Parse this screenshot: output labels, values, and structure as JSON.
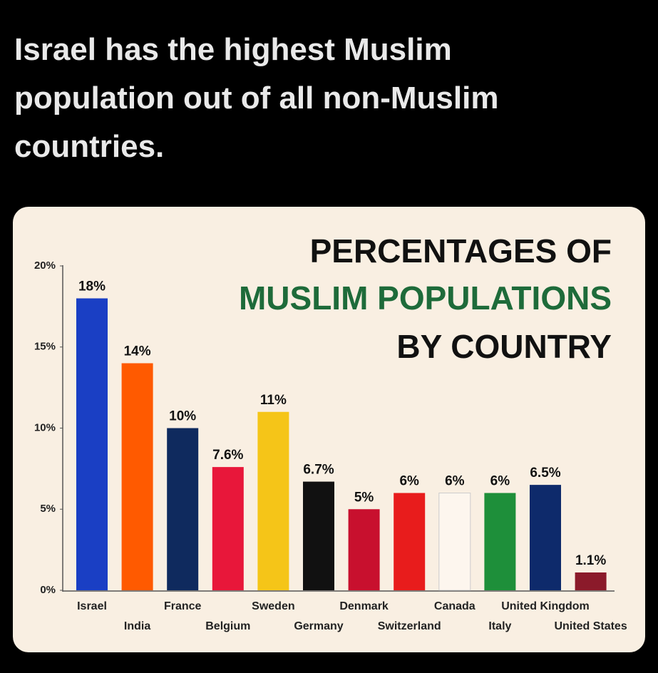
{
  "headline": "Israel has the highest Muslim population out of all non-Muslim countries.",
  "chart_data": {
    "type": "bar",
    "title_lines": [
      "PERCENTAGES OF",
      "MUSLIM POPULATIONS",
      "BY COUNTRY"
    ],
    "categories": [
      "Israel",
      "India",
      "France",
      "Belgium",
      "Sweden",
      "Germany",
      "Denmark",
      "Switzerland",
      "Canada",
      "Italy",
      "United Kingdom",
      "United States"
    ],
    "values": [
      18,
      14,
      10,
      7.6,
      11,
      6.7,
      5,
      6,
      6,
      6,
      6.5,
      1.1
    ],
    "value_labels": [
      "18%",
      "14%",
      "10%",
      "7.6%",
      "11%",
      "6.7%",
      "5%",
      "6%",
      "6%",
      "6%",
      "6.5%",
      "1.1%"
    ],
    "colors": [
      "#1a3fc4",
      "#ff5a00",
      "#0f2a5e",
      "#e8173a",
      "#f5c518",
      "#111111",
      "#c8102e",
      "#e81c1c",
      "#fdf6ee",
      "#1e8f3a",
      "#0e2a6b",
      "#8b1a2a"
    ],
    "ylim": [
      0,
      20
    ],
    "yticks": [
      {
        "value": 0,
        "label": "0%"
      },
      {
        "value": 5,
        "label": "5%"
      },
      {
        "value": 10,
        "label": "10%"
      },
      {
        "value": 15,
        "label": "15%"
      },
      {
        "value": 20,
        "label": "20%"
      }
    ]
  }
}
